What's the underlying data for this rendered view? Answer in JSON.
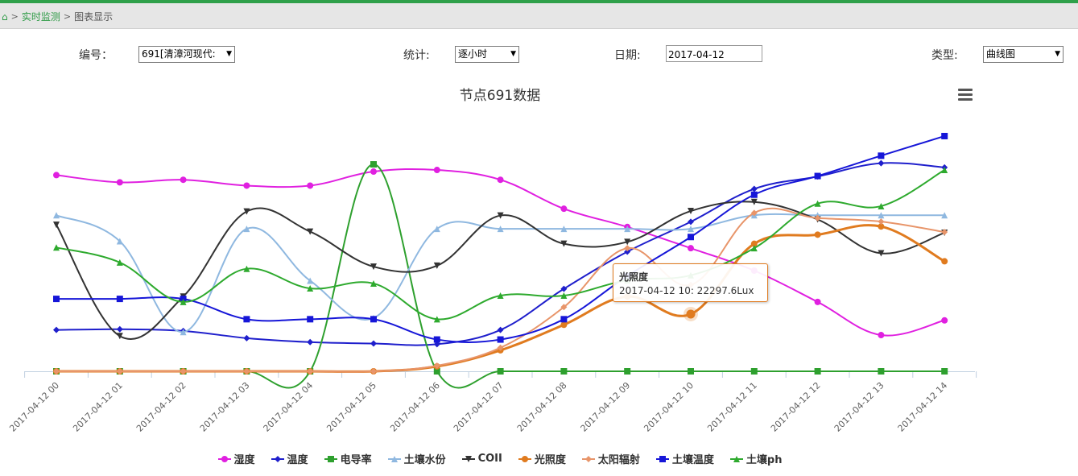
{
  "breadcrumb": {
    "home_icon": "home-icon",
    "link": "实时监测",
    "current": "图表显示"
  },
  "filters": {
    "node": {
      "label": "编号：",
      "value": "691[清漳河现代:"
    },
    "stat": {
      "label": "统计:",
      "value": "逐小时"
    },
    "date": {
      "label": "日期:",
      "value": "2017-04-12"
    },
    "type": {
      "label": "类型:",
      "value": "曲线图"
    }
  },
  "tooltip": {
    "title": "光照度",
    "body": "2017-04-12 10: 22297.6Lux"
  },
  "chart_data": {
    "type": "line",
    "title": "节点691数据",
    "categories": [
      "2017-04-12 00",
      "2017-04-12 01",
      "2017-04-12 02",
      "2017-04-12 03",
      "2017-04-12 04",
      "2017-04-12 05",
      "2017-04-12 06",
      "2017-04-12 07",
      "2017-04-12 08",
      "2017-04-12 09",
      "2017-04-12 10",
      "2017-04-12 11",
      "2017-04-12 12",
      "2017-04-12 13",
      "2017-04-12 14"
    ],
    "ylim": [
      0,
      100
    ],
    "legend_position": "bottom",
    "series": [
      {
        "name": "湿度",
        "color": "#e020e0",
        "marker": "circle",
        "values": [
          84.0,
          80.9,
          82.0,
          79.5,
          79.5,
          85.5,
          86.2,
          82.0,
          69.6,
          61.8,
          52.7,
          43.1,
          29.7,
          15.5,
          21.8
        ]
      },
      {
        "name": "温度",
        "color": "#1f1fcc",
        "marker": "diamond",
        "values": [
          17.7,
          18.0,
          17.3,
          14.2,
          12.5,
          11.9,
          11.6,
          17.7,
          35.3,
          51.2,
          64.0,
          78.1,
          83.4,
          89.1,
          87.3
        ]
      },
      {
        "name": "电导率",
        "color": "#2ea02e",
        "marker": "square",
        "values": [
          0.0,
          0.0,
          0.0,
          0.0,
          0.0,
          88.6,
          0.0,
          0.0,
          0.0,
          0.0,
          0.0,
          0.0,
          0.0,
          0.0,
          0.0
        ]
      },
      {
        "name": "土壤水份",
        "color": "#8fb8e0",
        "marker": "triangle",
        "values": [
          66.8,
          55.7,
          16.8,
          61.0,
          38.8,
          22.8,
          61.0,
          61.0,
          61.0,
          61.0,
          61.0,
          66.8,
          66.8,
          66.8,
          66.8
        ]
      },
      {
        "name": "COII",
        "color": "#333333",
        "marker": "triangle-down",
        "values": [
          62.7,
          15.1,
          32.0,
          68.4,
          59.8,
          44.8,
          45.2,
          66.7,
          54.6,
          55.4,
          68.6,
          72.5,
          65.0,
          50.5,
          59.3
        ]
      },
      {
        "name": "光照度",
        "color": "#e07b1f",
        "marker": "circle",
        "values": [
          0.0,
          0.0,
          0.0,
          0.0,
          0.0,
          0.0,
          2.1,
          9.0,
          19.9,
          32.0,
          24.5,
          54.6,
          58.5,
          62.0,
          47.1
        ]
      },
      {
        "name": "太阳辐射",
        "color": "#e8956a",
        "marker": "diamond",
        "values": [
          0.0,
          0.0,
          0.0,
          0.0,
          0.0,
          0.0,
          2.4,
          10.1,
          27.5,
          52.7,
          37.0,
          67.8,
          65.6,
          64.1,
          59.6
        ]
      },
      {
        "name": "土壤温度",
        "color": "#1616d8",
        "marker": "square",
        "values": [
          31.0,
          31.0,
          31.0,
          22.3,
          22.3,
          22.3,
          13.6,
          13.6,
          22.3,
          40.8,
          57.5,
          75.6,
          83.6,
          92.3,
          100.7
        ]
      },
      {
        "name": "土壤ph",
        "color": "#2eaa2e",
        "marker": "triangle",
        "values": [
          53.0,
          46.6,
          29.7,
          43.9,
          35.5,
          37.6,
          22.3,
          32.4,
          32.4,
          39.0,
          41.1,
          52.7,
          71.8,
          70.7,
          86.2
        ]
      }
    ],
    "highlight": {
      "series": "光照度",
      "category": "2017-04-12 10"
    }
  }
}
